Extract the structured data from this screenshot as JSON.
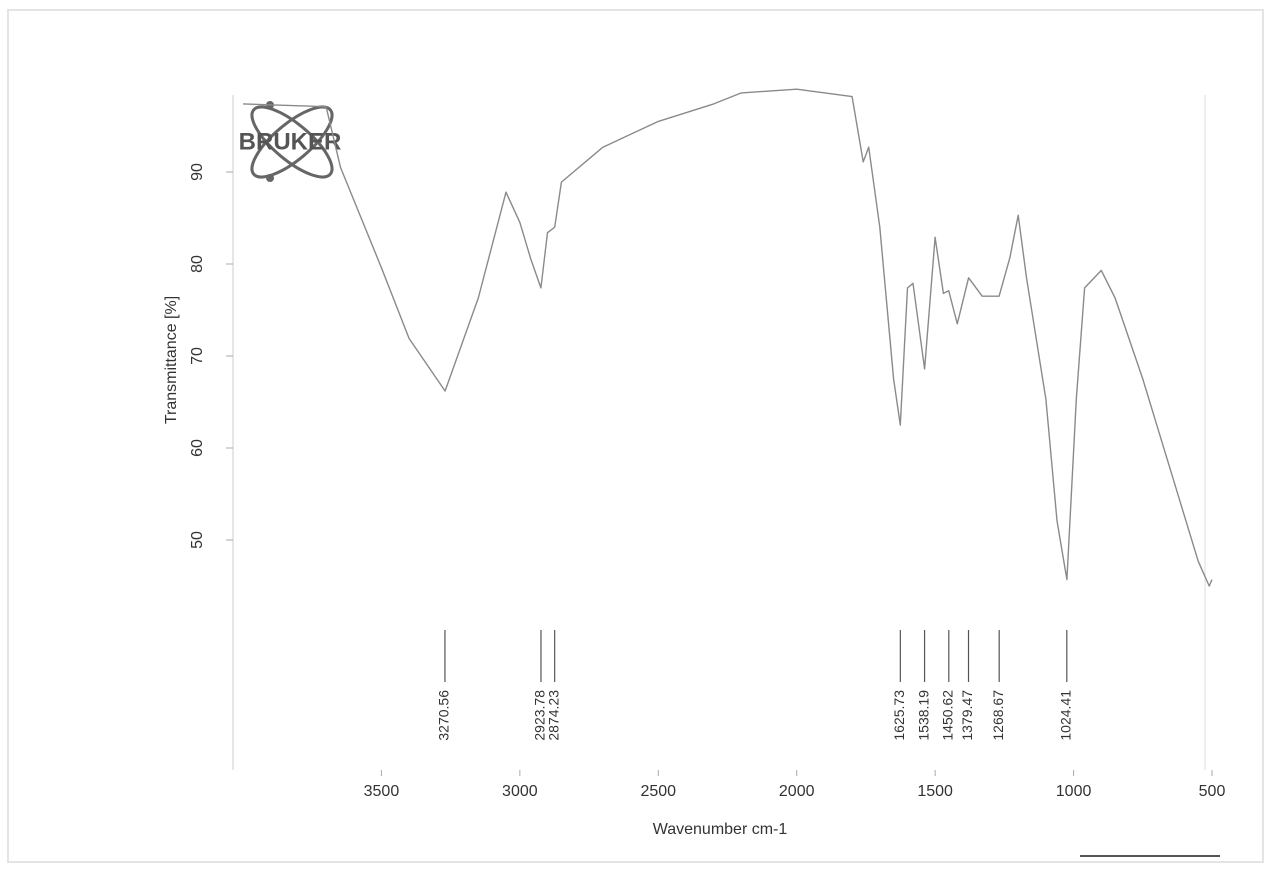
{
  "chart_data": {
    "type": "line",
    "logo": "BRUKER",
    "x_label": "Wavenumber cm-1",
    "y_label": "Transmittance [%]",
    "color": "#8a8a8a",
    "xlim": [
      4000,
      500
    ],
    "ylim": [
      25,
      100
    ],
    "xticks": [
      3500,
      3000,
      2500,
      2000,
      1500,
      1000,
      500
    ],
    "yticks": [
      50,
      60,
      70,
      80,
      90
    ],
    "x": [
      4000,
      3700,
      3648,
      3500,
      3400,
      3270,
      3150,
      3050,
      3000,
      2960,
      2924,
      2900,
      2874,
      2850,
      2700,
      2500,
      2300,
      2200,
      2000,
      1800,
      1760,
      1740,
      1700,
      1650,
      1626,
      1600,
      1580,
      1538,
      1500,
      1470,
      1451,
      1420,
      1379,
      1330,
      1269,
      1230,
      1200,
      1170,
      1100,
      1060,
      1024,
      990,
      960,
      900,
      850,
      750,
      650,
      550,
      510,
      500
    ],
    "values": [
      97.4,
      97.1,
      90.5,
      79.6,
      71.9,
      66.2,
      76.3,
      87.8,
      84.5,
      80.5,
      77.4,
      83.4,
      84.0,
      88.9,
      92.7,
      95.5,
      97.4,
      98.6,
      99.0,
      98.2,
      91.1,
      92.7,
      84.0,
      67.5,
      62.5,
      77.4,
      77.9,
      68.6,
      82.9,
      76.8,
      77.1,
      73.5,
      78.5,
      76.5,
      76.5,
      80.7,
      85.3,
      78.5,
      65.3,
      52.1,
      45.7,
      65.3,
      77.4,
      79.3,
      76.3,
      67.5,
      57.6,
      47.7,
      45.0,
      45.7
    ],
    "peaks": [
      3270.56,
      2923.78,
      2874.23,
      1625.73,
      1538.19,
      1450.62,
      1379.47,
      1268.67,
      1024.41
    ]
  }
}
